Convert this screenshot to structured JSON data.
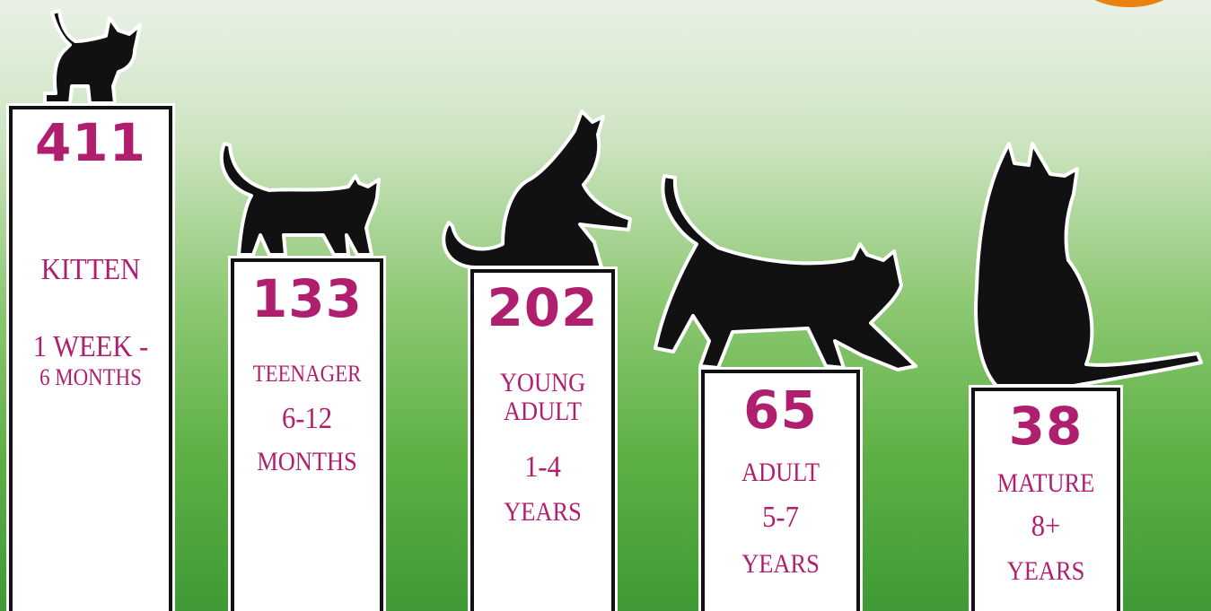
{
  "panels": [
    {
      "value": "411",
      "lines": [
        "KITTEN",
        "1 WEEK -",
        "6 MONTHS"
      ]
    },
    {
      "value": "133",
      "lines": [
        "TEENAGER",
        "6-12",
        "MONTHS"
      ]
    },
    {
      "value": "202",
      "lines": [
        "YOUNG",
        "ADULT",
        "1-4",
        "YEARS"
      ]
    },
    {
      "value": "65",
      "lines": [
        "ADULT",
        "5-7",
        "YEARS"
      ]
    },
    {
      "value": "38",
      "lines": [
        "MATURE",
        "8+",
        "YEARS"
      ]
    }
  ]
}
